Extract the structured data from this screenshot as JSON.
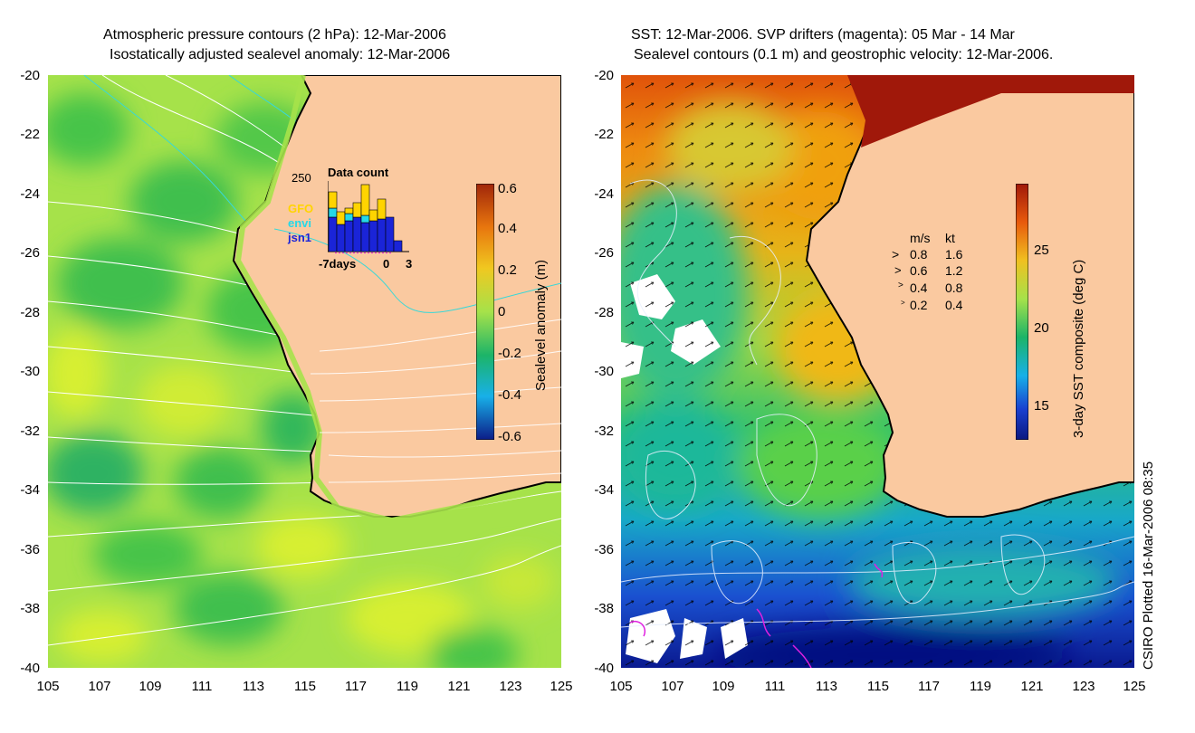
{
  "left": {
    "title_line1": "Atmospheric pressure contours (2 hPa): 12-Mar-2006",
    "title_line2": "Isostatically adjusted sealevel anomaly: 12-Mar-2006",
    "colorbar_label": "Sealevel anomaly (m)",
    "colorbar_ticks": [
      "0.6",
      "0.4",
      "0.2",
      "0",
      "-0.2",
      "-0.4",
      "-0.6"
    ],
    "inset": {
      "title": "Data count",
      "ymax": "250",
      "legend": [
        "GFO",
        "envi",
        "jsn1"
      ],
      "legend_colors": [
        "#ffd400",
        "#25d8e8",
        "#1a24d8"
      ],
      "xlabel_left": "-7days",
      "xlabel_mid": "0",
      "xlabel_right": "3"
    }
  },
  "right": {
    "title_line1": "SST: 12-Mar-2006. SVP drifters (magenta): 05 Mar - 14 Mar",
    "title_line2": "Sealevel contours (0.1 m) and geostrophic velocity: 12-Mar-2006.",
    "colorbar_label": "3-day SST composite (deg C)",
    "colorbar_ticks": [
      "25",
      "20",
      "15"
    ],
    "velocity_legend": {
      "header_ms": "m/s",
      "header_kt": "kt",
      "rows": [
        {
          "ms": "0.8",
          "kt": "1.6"
        },
        {
          "ms": "0.6",
          "kt": "1.2"
        },
        {
          "ms": "0.4",
          "kt": "0.8"
        },
        {
          "ms": "0.2",
          "kt": "0.4"
        }
      ]
    }
  },
  "axes": {
    "y_ticks": [
      "-20",
      "-22",
      "-24",
      "-26",
      "-28",
      "-30",
      "-32",
      "-34",
      "-36",
      "-38",
      "-40"
    ],
    "x_ticks": [
      "105",
      "107",
      "109",
      "111",
      "113",
      "115",
      "117",
      "119",
      "121",
      "123",
      "125"
    ]
  },
  "credit": "CSIRO Plotted 16-Mar-2006 08:35",
  "colors": {
    "land": "#fac9a0",
    "ssa_base": "#a6e24a",
    "sst_warm": "#e04a00",
    "sst_cold": "#1a2fc0"
  }
}
